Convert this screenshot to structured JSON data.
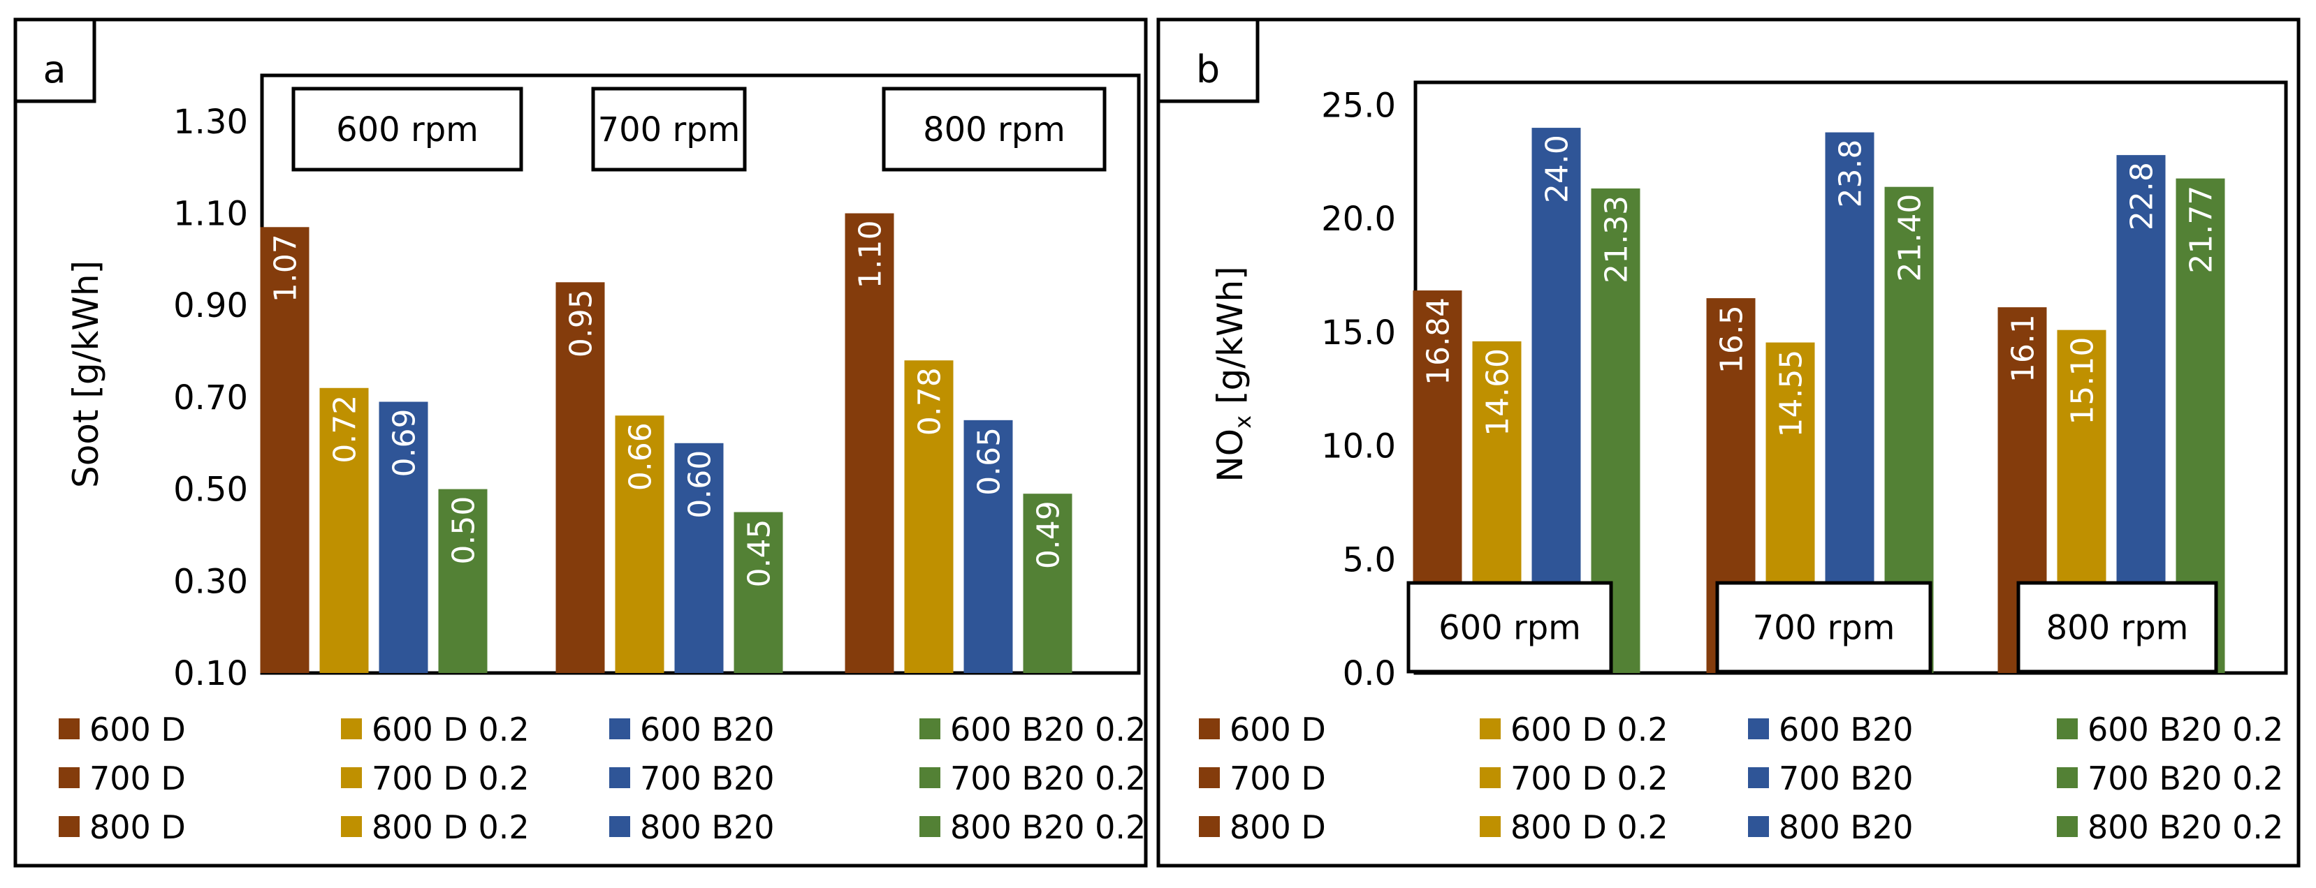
{
  "colors": {
    "D": "#843C0C",
    "D02": "#BF9000",
    "B20": "#2F5597",
    "B2002": "#538135"
  },
  "chart_data": [
    {
      "type": "bar",
      "panel_label": "a",
      "title": "",
      "ylabel": "Soot [g/kWh]",
      "ylabel_main": "Soot [g/kWh]",
      "ylabel_sub": "",
      "ylabel_rest": "",
      "ylim": [
        0.1,
        1.4
      ],
      "ytick_values": [
        0.1,
        0.3,
        0.5,
        0.7,
        0.9,
        1.1,
        1.3
      ],
      "ytick_labels": [
        "0.10",
        "0.30",
        "0.50",
        "0.70",
        "0.90",
        "1.10",
        "1.30"
      ],
      "group_box_position": "top",
      "categories": [
        "600 rpm",
        "700 rpm",
        "800 rpm"
      ],
      "series": [
        {
          "key": "D",
          "values": [
            1.07,
            0.95,
            1.1
          ],
          "labels": [
            "1.07",
            "0.95",
            "1.10"
          ]
        },
        {
          "key": "D02",
          "values": [
            0.72,
            0.66,
            0.78
          ],
          "labels": [
            "0.72",
            "0.66",
            "0.78"
          ]
        },
        {
          "key": "B20",
          "values": [
            0.69,
            0.6,
            0.65
          ],
          "labels": [
            "0.69",
            "0.60",
            "0.65"
          ]
        },
        {
          "key": "B2002",
          "values": [
            0.5,
            0.45,
            0.49
          ],
          "labels": [
            "0.50",
            "0.45",
            "0.49"
          ]
        }
      ],
      "legend_position": "bottom",
      "legend": [
        [
          "600 D",
          "600 D 0.2",
          "600 B20",
          "600 B20 0.2"
        ],
        [
          "700 D",
          "700 D 0.2",
          "700 B20",
          "700 B20 0.2"
        ],
        [
          "800 D",
          "800 D 0.2",
          "800 B20",
          "800 B20 0.2"
        ]
      ]
    },
    {
      "type": "bar",
      "panel_label": "b",
      "title": "",
      "ylabel": "NOx [g/kWh]",
      "ylabel_main": "NO",
      "ylabel_sub": "x",
      "ylabel_rest": " [g/kWh]",
      "ylim": [
        0.0,
        26.0
      ],
      "ytick_values": [
        0,
        5,
        10,
        15,
        20,
        25
      ],
      "ytick_labels": [
        "0.0",
        "5.0",
        "10.0",
        "15.0",
        "20.0",
        "25.0"
      ],
      "group_box_position": "bottom",
      "categories": [
        "600 rpm",
        "700 rpm",
        "800 rpm"
      ],
      "series": [
        {
          "key": "D",
          "values": [
            16.84,
            16.5,
            16.1
          ],
          "labels": [
            "16.84",
            "16.5",
            "16.1"
          ]
        },
        {
          "key": "D02",
          "values": [
            14.6,
            14.55,
            15.1
          ],
          "labels": [
            "14.60",
            "14.55",
            "15.10"
          ]
        },
        {
          "key": "B20",
          "values": [
            24.0,
            23.8,
            22.8
          ],
          "labels": [
            "24.0",
            "23.8",
            "22.8"
          ]
        },
        {
          "key": "B2002",
          "values": [
            21.33,
            21.4,
            21.77
          ],
          "labels": [
            "21.33",
            "21.40",
            "21.77"
          ]
        }
      ],
      "legend_position": "bottom",
      "legend": [
        [
          "600 D",
          "600 D 0.2",
          "600 B20",
          "600 B20 0.2"
        ],
        [
          "700 D",
          "700 D 0.2",
          "700 B20",
          "700 B20 0.2"
        ],
        [
          "800 D",
          "800 D 0.2",
          "800 B20",
          "800 B20 0.2"
        ]
      ]
    }
  ]
}
